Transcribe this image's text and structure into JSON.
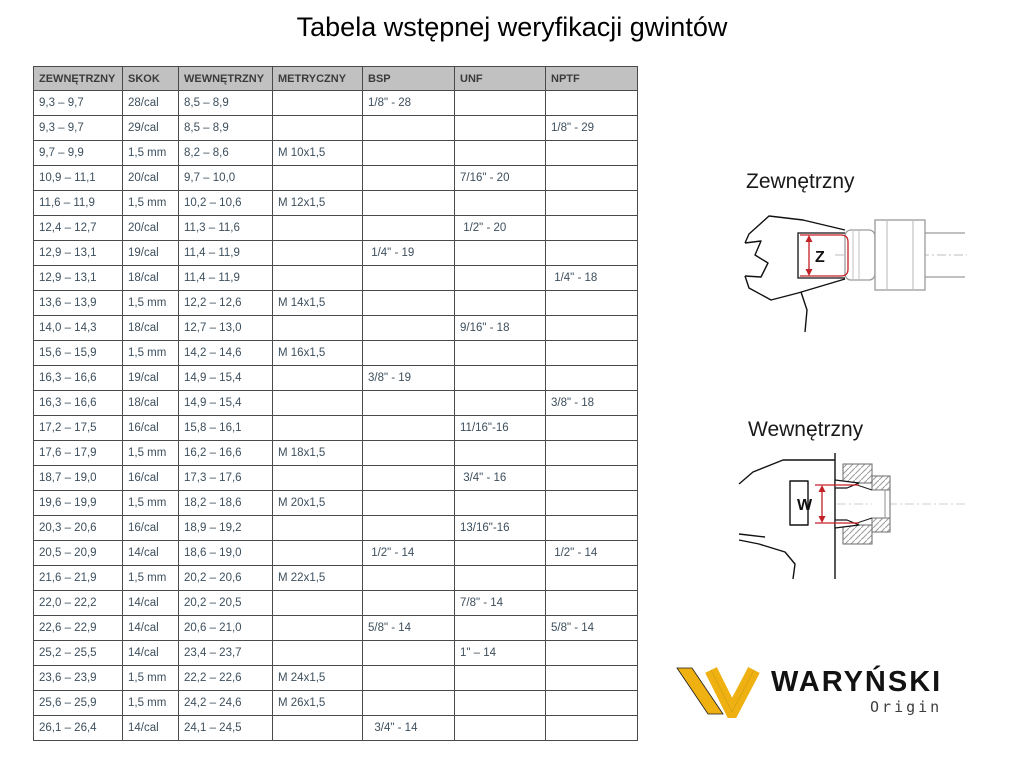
{
  "title": "Tabela wstępnej weryfikacji gwintów",
  "table": {
    "headers": [
      "ZEWNĘTRZNY",
      "SKOK",
      "WEWNĘTRZNY",
      "METRYCZNY",
      "BSP",
      "UNF",
      "NPTF"
    ],
    "rows": [
      [
        "9,3 – 9,7",
        "28/cal",
        "8,5 – 8,9",
        "",
        "1/8\" - 28",
        "",
        ""
      ],
      [
        "9,3 – 9,7",
        "29/cal",
        "8,5 – 8,9",
        "",
        "",
        "",
        "1/8\" - 29"
      ],
      [
        "9,7 – 9,9",
        "1,5 mm",
        "8,2 – 8,6",
        "M 10x1,5",
        "",
        "",
        ""
      ],
      [
        "10,9 – 11,1",
        "20/cal",
        "9,7 – 10,0",
        "",
        "",
        "7/16\" - 20",
        ""
      ],
      [
        "11,6 – 11,9",
        "1,5 mm",
        "10,2 – 10,6",
        "M 12x1,5",
        "",
        "",
        ""
      ],
      [
        "12,4 – 12,7",
        "20/cal",
        "11,3 – 11,6",
        "",
        "",
        " 1/2\" - 20",
        ""
      ],
      [
        "12,9 – 13,1",
        "19/cal",
        "11,4 – 11,9",
        "",
        " 1/4\" - 19",
        "",
        ""
      ],
      [
        "12,9 – 13,1",
        "18/cal",
        "11,4 – 11,9",
        "",
        "",
        "",
        " 1/4\" - 18"
      ],
      [
        "13,6 – 13,9",
        "1,5 mm",
        "12,2 – 12,6",
        "M 14x1,5",
        "",
        "",
        ""
      ],
      [
        "14,0 – 14,3",
        "18/cal",
        "12,7 – 13,0",
        "",
        "",
        "9/16\" - 18",
        ""
      ],
      [
        "15,6 – 15,9",
        "1,5 mm",
        "14,2 – 14,6",
        "M 16x1,5",
        "",
        "",
        ""
      ],
      [
        "16,3 – 16,6",
        "19/cal",
        "14,9 – 15,4",
        "",
        "3/8\" - 19",
        "",
        ""
      ],
      [
        "16,3 – 16,6",
        "18/cal",
        "14,9 – 15,4",
        "",
        "",
        "",
        "3/8\" - 18"
      ],
      [
        "17,2 – 17,5",
        "16/cal",
        "15,8 – 16,1",
        "",
        "",
        "11/16\"-16",
        ""
      ],
      [
        "17,6 – 17,9",
        "1,5 mm",
        "16,2 – 16,6",
        "M 18x1,5",
        "",
        "",
        ""
      ],
      [
        "18,7 – 19,0",
        "16/cal",
        "17,3 – 17,6",
        "",
        "",
        " 3/4\" - 16",
        ""
      ],
      [
        "19,6 – 19,9",
        "1,5 mm",
        "18,2 – 18,6",
        "M 20x1,5",
        "",
        "",
        ""
      ],
      [
        "20,3 – 20,6",
        "16/cal",
        "18,9 – 19,2",
        "",
        "",
        "13/16\"-16",
        ""
      ],
      [
        "20,5 – 20,9",
        "14/cal",
        "18,6 – 19,0",
        "",
        " 1/2\" - 14",
        "",
        " 1/2\" - 14"
      ],
      [
        "21,6 – 21,9",
        "1,5 mm",
        "20,2 – 20,6",
        "M 22x1,5",
        "",
        "",
        ""
      ],
      [
        "22,0 – 22,2",
        "14/cal",
        "20,2 – 20,5",
        "",
        "",
        "7/8\" - 14",
        ""
      ],
      [
        "22,6 – 22,9",
        "14/cal",
        "20,6 – 21,0",
        "",
        "5/8\" - 14",
        "",
        "5/8\" - 14"
      ],
      [
        "25,2 – 25,5",
        "14/cal",
        "23,4 – 23,7",
        "",
        "",
        "1\" – 14",
        ""
      ],
      [
        "23,6 – 23,9",
        "1,5 mm",
        "22,2 – 22,6",
        "M 24x1,5",
        "",
        "",
        ""
      ],
      [
        "25,6 – 25,9",
        "1,5 mm",
        "24,2 – 24,6",
        "M 26x1,5",
        "",
        "",
        ""
      ],
      [
        "26,1 – 26,4",
        "14/cal",
        "24,1 – 24,5",
        "",
        "  3/4\" - 14",
        "",
        ""
      ]
    ]
  },
  "diagrams": {
    "external": {
      "label": "Zewnętrzny",
      "dimension_letter": "Z"
    },
    "internal": {
      "label": "Wewnętrzny",
      "dimension_letter": "W"
    }
  },
  "logo": {
    "brand": "WARYŃSKI",
    "sub": "Origin"
  },
  "colors": {
    "dimension_red": "#c42127",
    "logo_gold": "#eeb111",
    "header_bg": "#c1c1c1",
    "table_border": "#4a4a4a",
    "cell_text": "#3d4f5d"
  }
}
